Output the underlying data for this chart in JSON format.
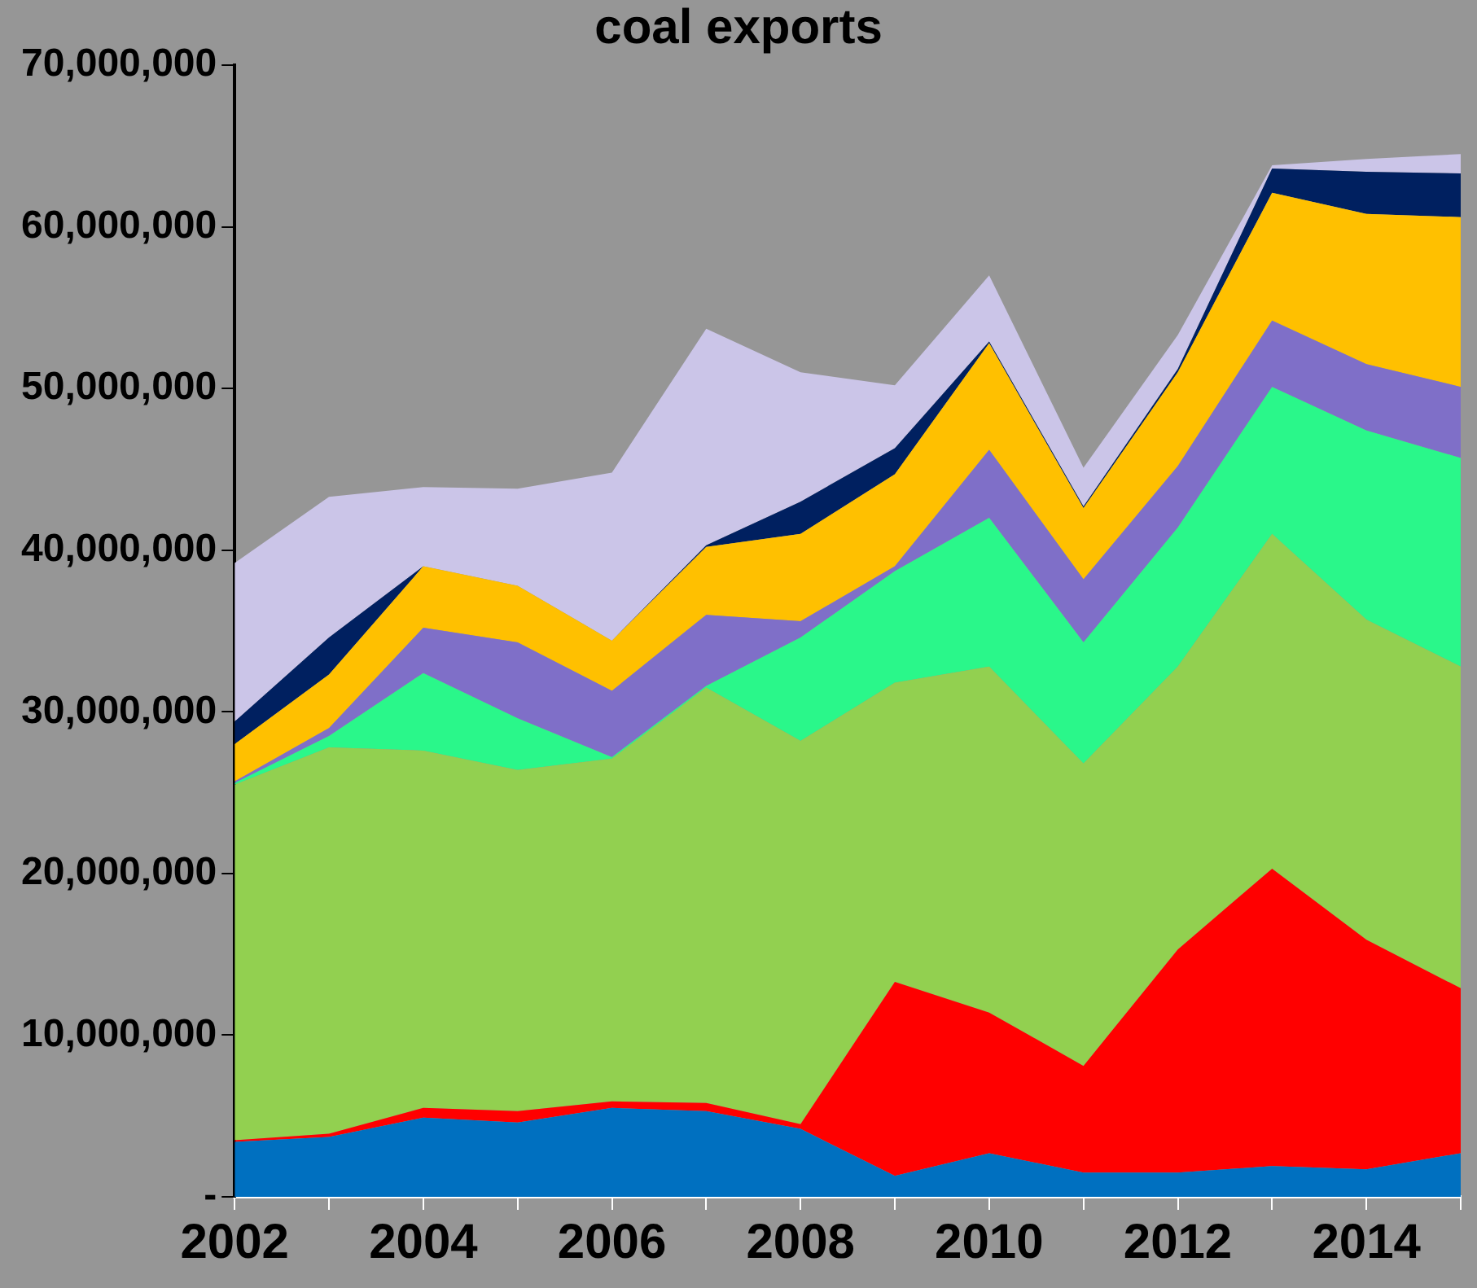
{
  "chart_data": {
    "type": "area",
    "title": "coal exports",
    "stacked": true,
    "x": [
      2002,
      2003,
      2004,
      2005,
      2006,
      2007,
      2008,
      2009,
      2010,
      2011,
      2012,
      2013,
      2014,
      2015
    ],
    "xlim": [
      2002,
      2015
    ],
    "xticks": [
      2002,
      {
        "value": 2003,
        "label": null
      },
      2004,
      {
        "value": 2005,
        "label": null
      },
      2006,
      {
        "value": 2007,
        "label": null
      },
      2008,
      {
        "value": 2009,
        "label": null
      },
      2010,
      {
        "value": 2011,
        "label": null
      },
      2012,
      {
        "value": 2013,
        "label": null
      },
      2014,
      {
        "value": 2015,
        "label": null
      }
    ],
    "ylim": [
      0,
      70000000
    ],
    "yticks": [
      {
        "value": 0,
        "label": "-"
      },
      {
        "value": 10000000,
        "label": "10,000,000"
      },
      {
        "value": 20000000,
        "label": "20,000,000"
      },
      {
        "value": 30000000,
        "label": "30,000,000"
      },
      {
        "value": 40000000,
        "label": "40,000,000"
      },
      {
        "value": 50000000,
        "label": "50,000,000"
      },
      {
        "value": 60000000,
        "label": "60,000,000"
      },
      {
        "value": 70000000,
        "label": "70,000,000"
      }
    ],
    "grid": false,
    "legend": false,
    "series": [
      {
        "color": "#0070c0",
        "values": [
          3400000,
          3700000,
          4900000,
          4600000,
          5500000,
          5300000,
          4200000,
          1300000,
          2700000,
          1500000,
          1500000,
          1900000,
          1700000,
          2700000
        ]
      },
      {
        "color": "#ff0000",
        "values": [
          100000,
          200000,
          600000,
          700000,
          400000,
          500000,
          300000,
          12000000,
          8700000,
          6600000,
          13800000,
          18400000,
          14200000,
          10200000
        ]
      },
      {
        "color": "#92d050",
        "values": [
          22000000,
          23900000,
          22100000,
          21100000,
          21200000,
          25700000,
          23700000,
          18500000,
          21400000,
          18700000,
          17500000,
          20700000,
          19800000,
          19900000
        ]
      },
      {
        "color": "#2af78a",
        "values": [
          100000,
          700000,
          4800000,
          3200000,
          100000,
          100000,
          6400000,
          6900000,
          9200000,
          7500000,
          8600000,
          9100000,
          11700000,
          12900000
        ]
      },
      {
        "color": "#7f6fc8",
        "values": [
          100000,
          500000,
          2800000,
          4700000,
          4100000,
          4400000,
          1000000,
          300000,
          4200000,
          3900000,
          3800000,
          4100000,
          4100000,
          4400000
        ]
      },
      {
        "color": "#ffc000",
        "values": [
          2300000,
          3300000,
          3800000,
          3500000,
          3100000,
          4200000,
          5400000,
          5700000,
          6600000,
          4400000,
          5800000,
          7900000,
          9300000,
          10500000
        ]
      },
      {
        "color": "#002060",
        "values": [
          1400000,
          2300000,
          0,
          0,
          0,
          100000,
          2000000,
          1600000,
          100000,
          100000,
          200000,
          1500000,
          2600000,
          2700000
        ]
      },
      {
        "color": "#cbc5e8",
        "values": [
          9800000,
          8700000,
          4900000,
          6000000,
          10400000,
          13400000,
          8000000,
          3900000,
          4100000,
          2400000,
          2100000,
          200000,
          800000,
          1200000
        ]
      }
    ]
  }
}
